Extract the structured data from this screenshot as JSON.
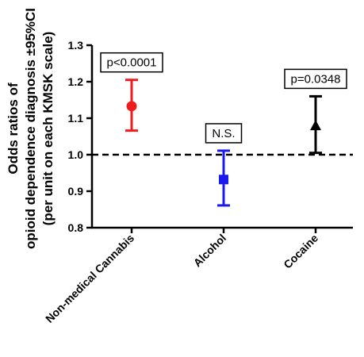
{
  "chart_data": {
    "type": "scatter",
    "ylabel_lines": [
      "Odds  ratios of",
      "opioid dependence diagnosis ±95%CI",
      "(per unit on each KMSK scale)"
    ],
    "ylim": [
      0.8,
      1.3
    ],
    "yticks": [
      "0.8",
      "0.9",
      "1.0",
      "1.1",
      "1.2",
      "1.3"
    ],
    "reference_line": 1.0,
    "categories": [
      "Non-medical Cannabis",
      "Alcohol",
      "Cocaine"
    ],
    "points": [
      {
        "category": "Non-medical Cannabis",
        "value": 1.133,
        "lower": 1.066,
        "upper": 1.205,
        "marker": "circle",
        "color": "#ee1c1c",
        "annotation": "p<0.0001"
      },
      {
        "category": "Alcohol",
        "value": 0.932,
        "lower": 0.861,
        "upper": 1.011,
        "marker": "square",
        "color": "#1a1aee",
        "annotation": "N.S."
      },
      {
        "category": "Cocaine",
        "value": 1.078,
        "lower": 1.005,
        "upper": 1.16,
        "marker": "triangle",
        "color": "#000000",
        "annotation": "p=0.0348"
      }
    ]
  }
}
